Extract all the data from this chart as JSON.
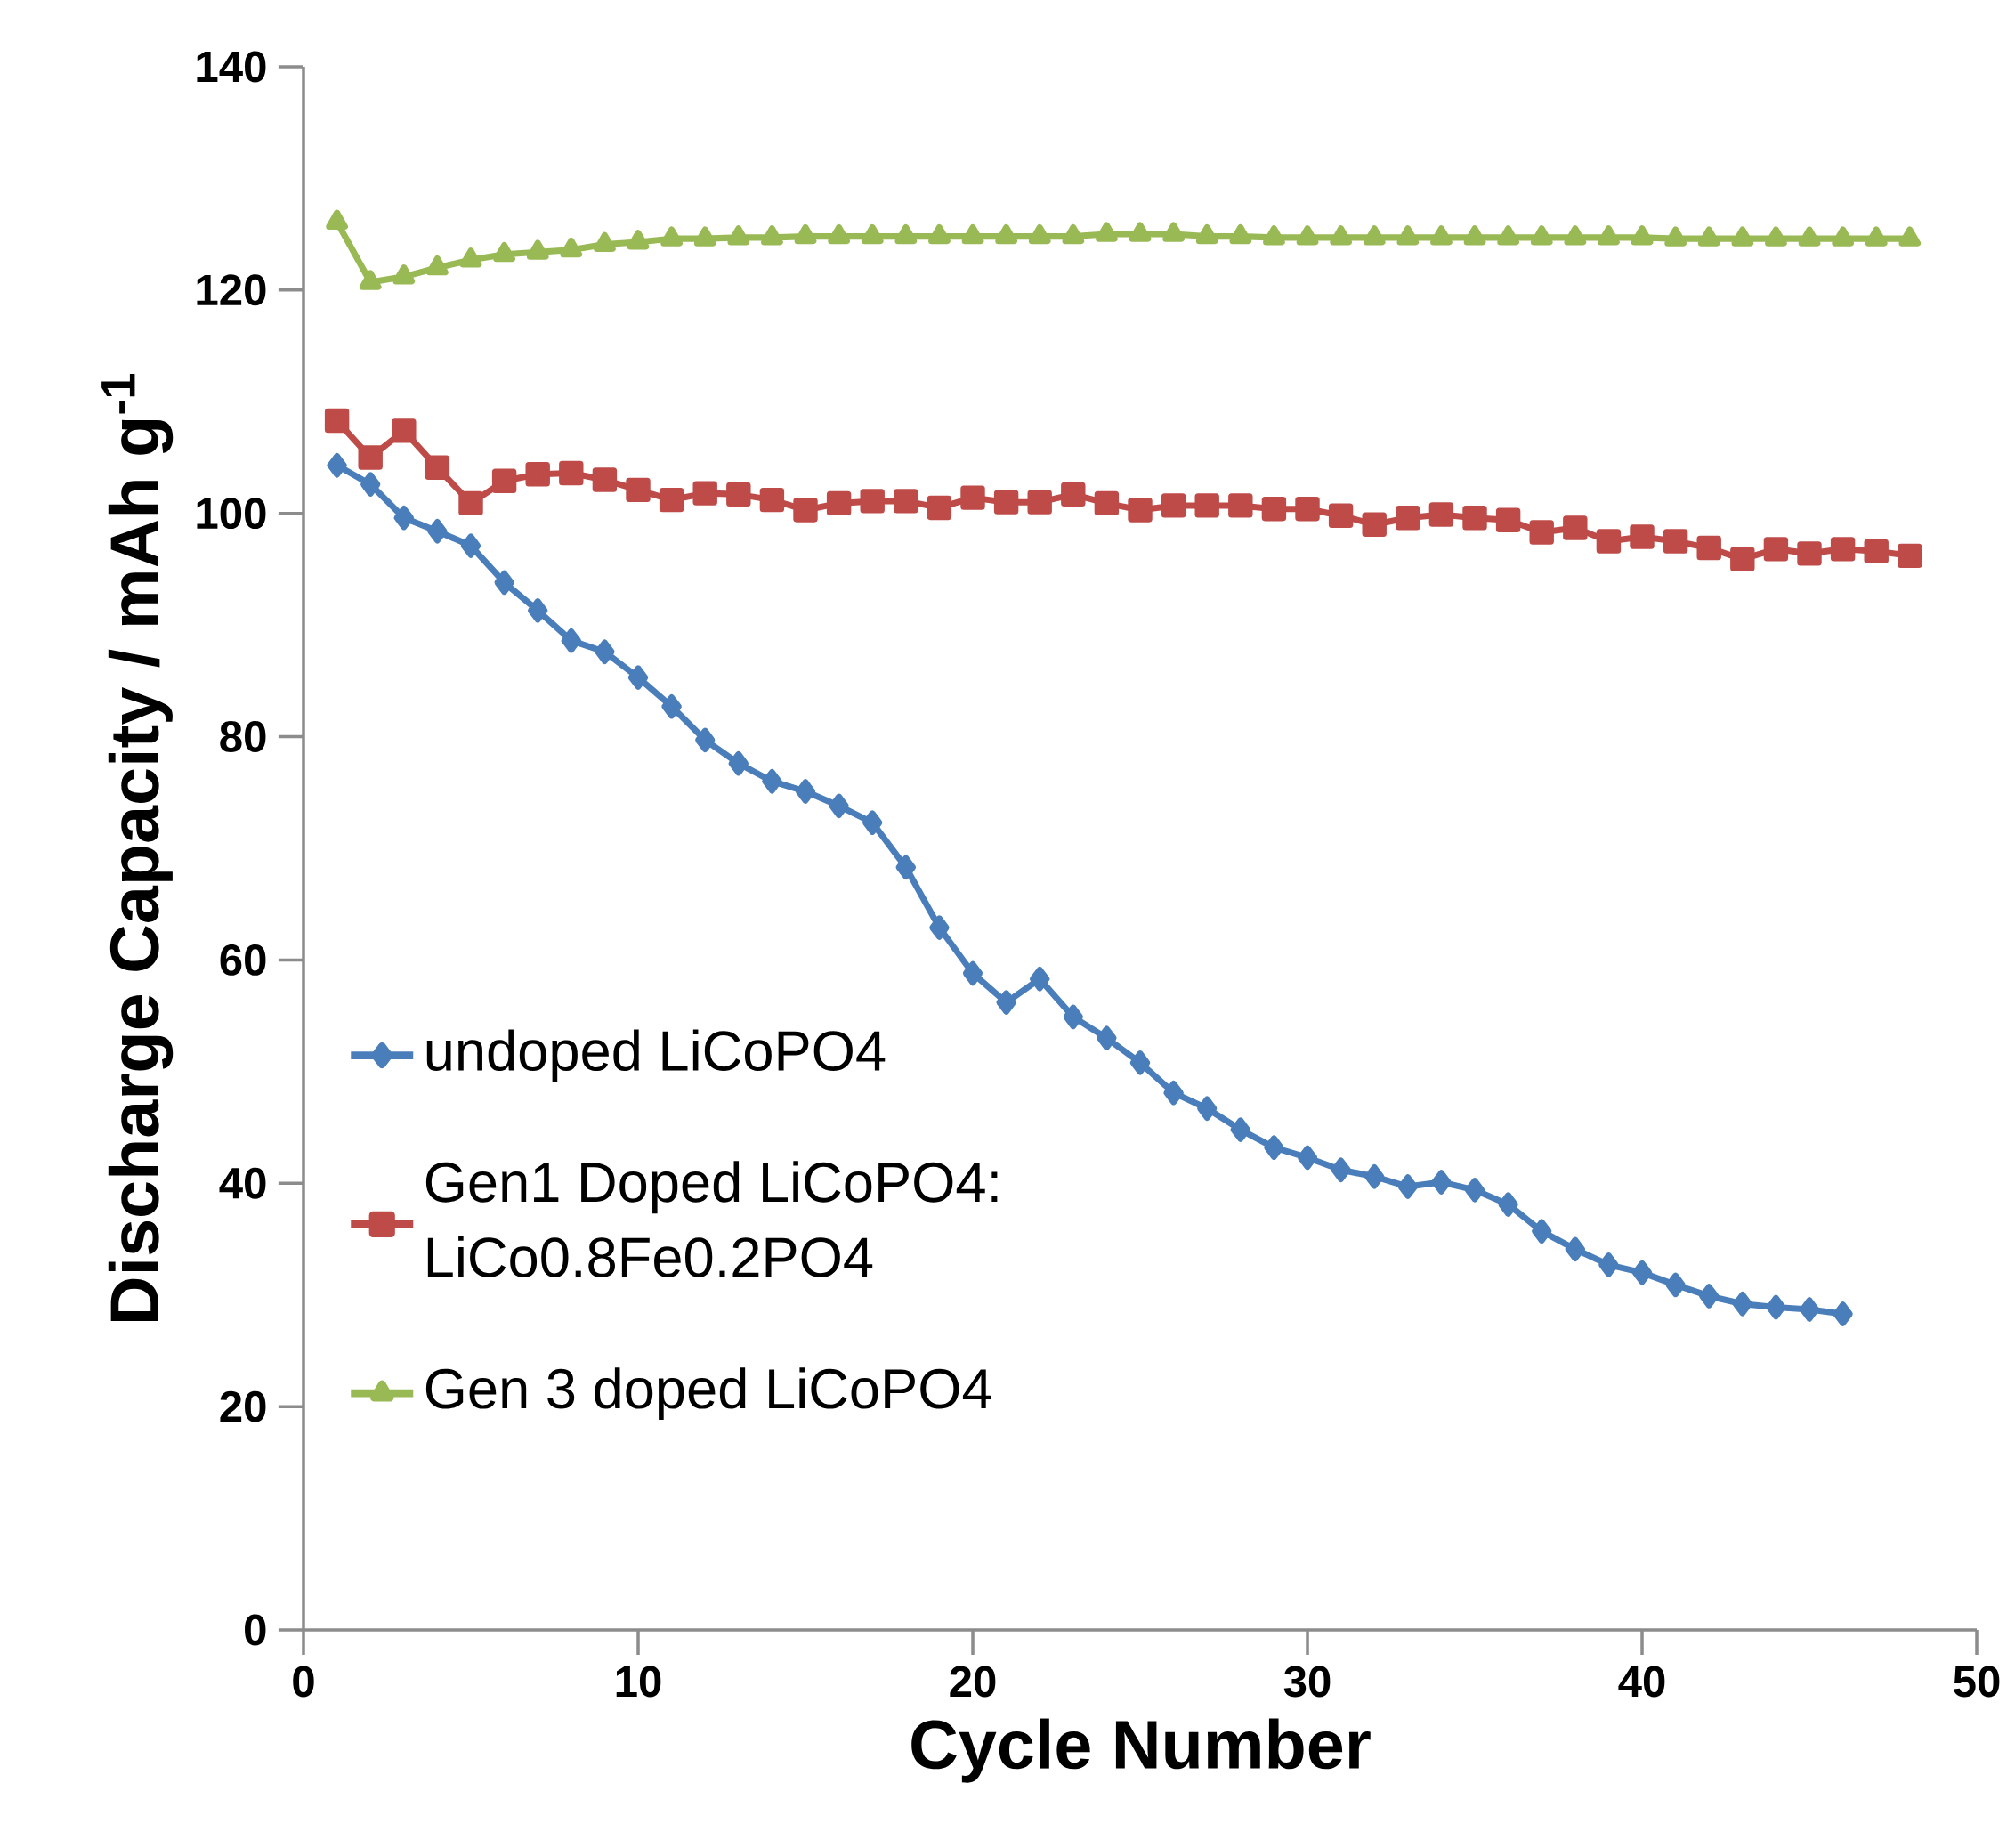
{
  "chart_data": {
    "type": "line",
    "xlabel": "Cycle Number",
    "ylabel": "Discharge Capacity / mAh g$^{-1}$",
    "x": [
      1,
      2,
      3,
      4,
      5,
      6,
      7,
      8,
      9,
      10,
      11,
      12,
      13,
      14,
      15,
      16,
      17,
      18,
      19,
      20,
      21,
      22,
      23,
      24,
      25,
      26,
      27,
      28,
      29,
      30,
      31,
      32,
      33,
      34,
      35,
      36,
      37,
      38,
      39,
      40,
      41,
      42,
      43,
      44,
      45,
      46,
      47,
      48
    ],
    "xlim": [
      0,
      50
    ],
    "xticks": [
      0,
      10,
      20,
      30,
      40,
      50
    ],
    "ylim": [
      0,
      140
    ],
    "yticks": [
      0,
      20,
      40,
      60,
      80,
      100,
      120,
      140
    ],
    "legend": "left",
    "series": [
      {
        "name": "undoped LiCoPO4",
        "color": "#4a7ebb",
        "marker": "diamond",
        "x": [
          1,
          2,
          3,
          4,
          5,
          6,
          7,
          8,
          9,
          10,
          11,
          12,
          13,
          14,
          15,
          16,
          17,
          18,
          19,
          20,
          21,
          22,
          23,
          24,
          25,
          26,
          27,
          28,
          29,
          30,
          31,
          32,
          33,
          34,
          35,
          36,
          37,
          38,
          39,
          40,
          41,
          42,
          43,
          44,
          45,
          46
        ],
        "values": [
          104.3,
          102.6,
          99.6,
          98.4,
          97.1,
          93.8,
          91.3,
          88.6,
          87.6,
          85.3,
          82.7,
          79.7,
          77.6,
          76.0,
          75.1,
          73.8,
          72.3,
          68.3,
          62.9,
          58.8,
          56.2,
          58.3,
          54.9,
          53.0,
          50.8,
          48.1,
          46.7,
          44.8,
          43.2,
          42.3,
          41.2,
          40.6,
          39.7,
          40.1,
          39.4,
          38.1,
          35.7,
          34.1,
          32.7,
          32.0,
          30.9,
          29.9,
          29.2,
          28.9,
          28.7,
          28.3
        ]
      },
      {
        "name": "Gen1 Doped LiCoPO4: LiCo0.8Fe0.2PO4",
        "color": "#be4b48",
        "marker": "square",
        "values": [
          108.3,
          105.0,
          107.4,
          104.1,
          100.9,
          102.9,
          103.5,
          103.6,
          103.0,
          102.1,
          101.2,
          101.8,
          101.7,
          101.2,
          100.3,
          100.9,
          101.1,
          101.1,
          100.5,
          101.4,
          101.0,
          101.0,
          101.7,
          100.9,
          100.3,
          100.7,
          100.7,
          100.7,
          100.4,
          100.4,
          99.8,
          99.0,
          99.6,
          99.9,
          99.6,
          99.4,
          98.3,
          98.7,
          97.5,
          97.9,
          97.5,
          96.9,
          95.9,
          96.8,
          96.4,
          96.8,
          96.6,
          96.2
        ]
      },
      {
        "name": "Gen 3 doped LiCoPO4",
        "color": "#98b954",
        "marker": "triangle",
        "values": [
          126.1,
          120.7,
          121.2,
          122.0,
          122.7,
          123.2,
          123.4,
          123.6,
          124.1,
          124.3,
          124.6,
          124.6,
          124.7,
          124.7,
          124.8,
          124.8,
          124.8,
          124.8,
          124.8,
          124.8,
          124.8,
          124.8,
          124.8,
          125.0,
          125.0,
          125.0,
          124.8,
          124.8,
          124.7,
          124.7,
          124.7,
          124.7,
          124.7,
          124.7,
          124.7,
          124.7,
          124.7,
          124.7,
          124.7,
          124.7,
          124.6,
          124.6,
          124.6,
          124.6,
          124.6,
          124.6,
          124.6,
          124.6
        ]
      }
    ]
  }
}
